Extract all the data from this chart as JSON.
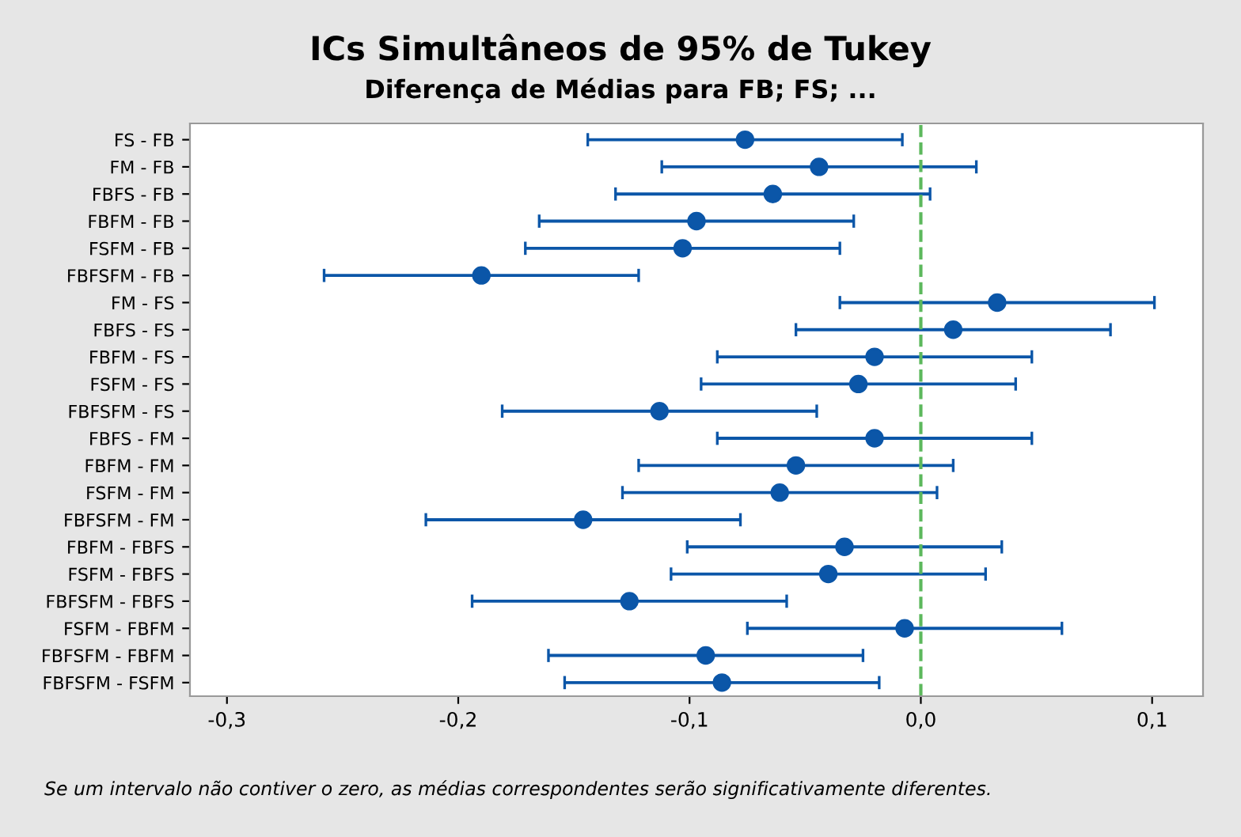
{
  "chart_data": {
    "type": "scatter",
    "orientation": "horizontal",
    "title": "ICs Simultâneos de 95% de Tukey",
    "subtitle": "Diferença de Médias para FB; FS; ...",
    "categories": [
      "FS - FB",
      "FM - FB",
      "FBFS - FB",
      "FBFM - FB",
      "FSFM - FB",
      "FBFSFM - FB",
      "FM - FS",
      "FBFS - FS",
      "FBFM - FS",
      "FSFM - FS",
      "FBFSFM - FS",
      "FBFS - FM",
      "FBFM - FM",
      "FSFM - FM",
      "FBFSFM - FM",
      "FBFM - FBFS",
      "FSFM - FBFS",
      "FBFSFM - FBFS",
      "FSFM - FBFM",
      "FBFSFM - FBFM",
      "FBFSFM - FSFM"
    ],
    "color": "#0b56a8",
    "values": [
      -0.076,
      -0.044,
      -0.064,
      -0.097,
      -0.103,
      -0.19,
      0.033,
      0.014,
      -0.02,
      -0.027,
      -0.113,
      -0.02,
      -0.054,
      -0.061,
      -0.146,
      -0.033,
      -0.04,
      -0.126,
      -0.007,
      -0.093,
      -0.086
    ],
    "errors": [
      0.068,
      0.068,
      0.068,
      0.068,
      0.068,
      0.068,
      0.068,
      0.068,
      0.068,
      0.068,
      0.068,
      0.068,
      0.068,
      0.068,
      0.068,
      0.068,
      0.068,
      0.068,
      0.068,
      0.068,
      0.068
    ],
    "xlim": [
      -0.316,
      0.122
    ],
    "xticks": [
      {
        "value": -0.3,
        "label": "-0,3"
      },
      {
        "value": -0.2,
        "label": "-0,2"
      },
      {
        "value": -0.1,
        "label": "-0,1"
      },
      {
        "value": 0.0,
        "label": "0,0"
      },
      {
        "value": 0.1,
        "label": "0,1"
      }
    ],
    "ref_lines": [
      {
        "axis": "x",
        "value": 0,
        "color": "#5cb85c",
        "line_style": "dashed"
      }
    ],
    "marker": "circle",
    "grid": false,
    "legend": false,
    "annotations": [
      "Se um intervalo não contiver o zero, as médias correspondentes serão significativamente diferentes."
    ]
  }
}
